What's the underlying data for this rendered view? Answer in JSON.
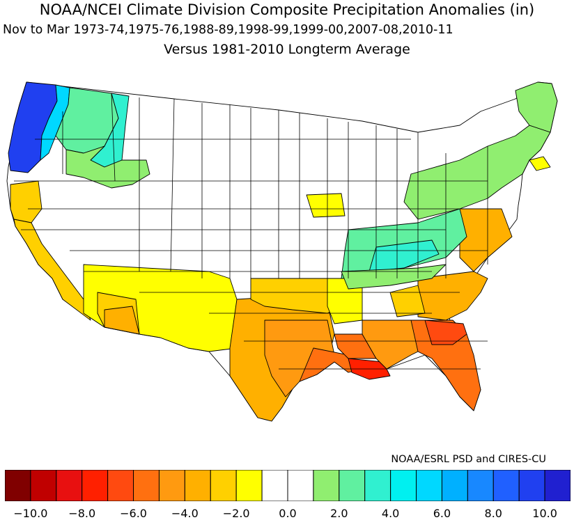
{
  "title": {
    "line1": "NOAA/NCEI Climate Division Composite Precipitation Anomalies (in)",
    "line2": "Nov to Mar  1973-74,1975-76,1988-89,1998-99,1999-00,2007-08,2010-11",
    "line3": "Versus 1981-2010 Longterm Average"
  },
  "credit": "NOAA/ESRL PSD and CIRES-CU",
  "legend": {
    "colors": [
      "#800000",
      "#c00000",
      "#e81010",
      "#ff2000",
      "#ff4a10",
      "#ff7010",
      "#ff9a10",
      "#ffb000",
      "#ffd000",
      "#ffff00",
      "#ffffff",
      "#ffffff",
      "#90ee70",
      "#60f0a0",
      "#30f0d0",
      "#00f0f0",
      "#00d8ff",
      "#00b0ff",
      "#1888ff",
      "#2060ff",
      "#2040f0",
      "#2020d0"
    ],
    "ticks": [
      {
        "label": "-10.0"
      },
      {
        "label": "-8.0"
      },
      {
        "label": "-6.0"
      },
      {
        "label": "-4.0"
      },
      {
        "label": "-2.0"
      },
      {
        "label": "0.0"
      },
      {
        "label": "2.0"
      },
      {
        "label": "4.0"
      },
      {
        "label": "6.0"
      },
      {
        "label": "8.0"
      },
      {
        "label": "10.0"
      }
    ]
  }
}
